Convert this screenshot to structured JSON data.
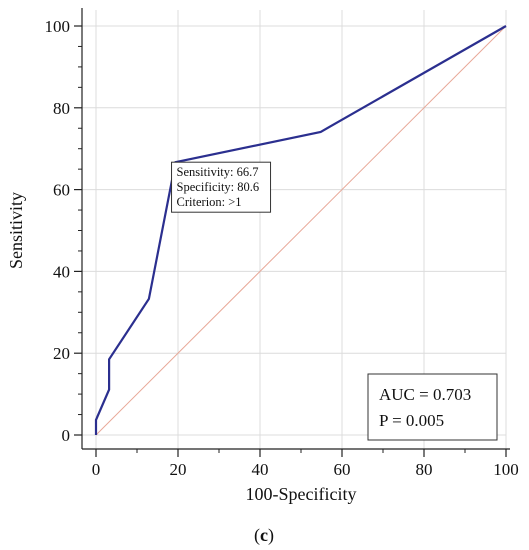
{
  "chart_data": {
    "type": "line",
    "xlabel": "100-Specificity",
    "ylabel": "Sensitivity",
    "xlim": [
      0,
      100
    ],
    "ylim": [
      0,
      100
    ],
    "xticks": [
      0,
      20,
      40,
      60,
      80,
      100
    ],
    "yticks": [
      0,
      20,
      40,
      60,
      80,
      100
    ],
    "grid": true,
    "series": [
      {
        "x": [
          0,
          0,
          3.2,
          3.2,
          12.9,
          19.4,
          54.8,
          100
        ],
        "y": [
          0,
          3.7,
          11.1,
          18.5,
          33.3,
          66.7,
          74.1,
          100
        ],
        "color": "#2b2f8f"
      }
    ],
    "reference_line": {
      "x": [
        0,
        100
      ],
      "y": [
        0,
        100
      ],
      "color": "#e8a898"
    },
    "annotation": {
      "x": 19.4,
      "y": 66.7,
      "lines": [
        "Sensitivity: 66.7",
        "Specificity: 80.6",
        "Criterion: >1"
      ]
    },
    "stats": {
      "auc": "AUC = 0.703",
      "p": "P = 0.005"
    },
    "caption": "(c)"
  }
}
